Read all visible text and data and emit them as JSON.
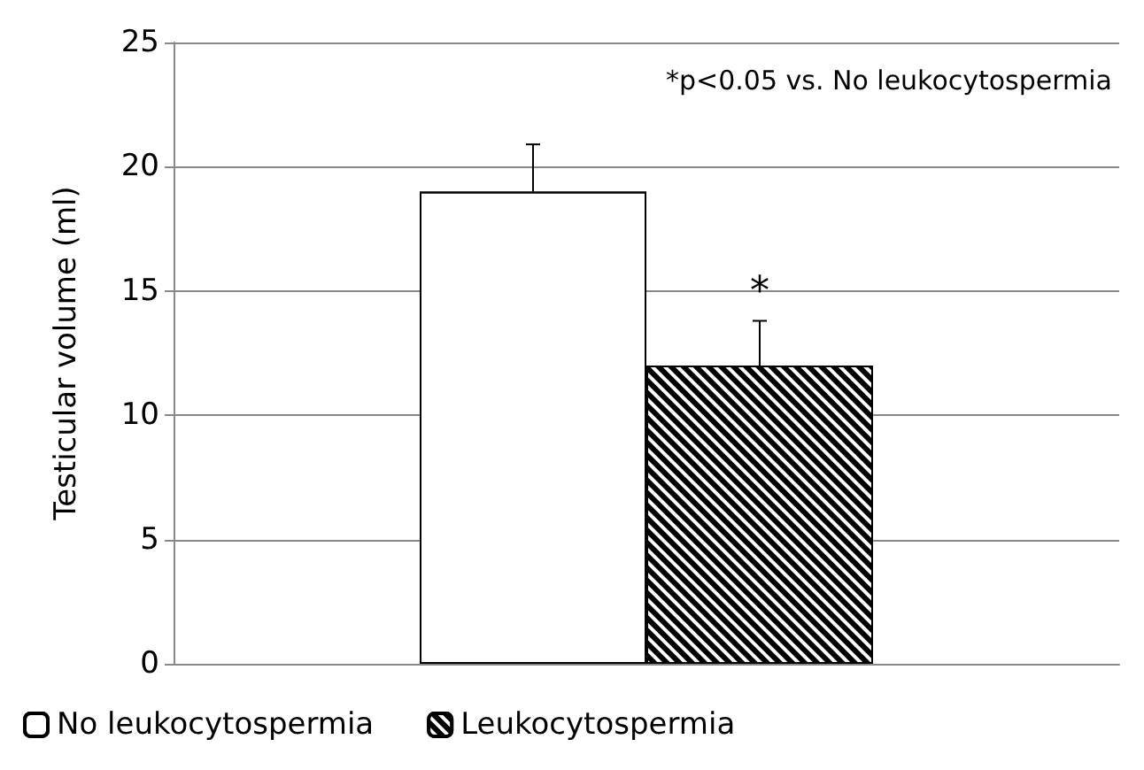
{
  "chart_data": {
    "type": "bar",
    "ylabel": "Testicular volume (ml)",
    "categories": [
      null
    ],
    "series": [
      {
        "name": "No leukocytospermia",
        "color": "#ffffff",
        "values": [
          19
        ],
        "errors": [
          [
            19,
            20.9
          ]
        ]
      },
      {
        "name": "Leukocytospermia",
        "color": "#000000",
        "values": [
          12
        ],
        "errors": [
          [
            12,
            13.8
          ]
        ]
      }
    ],
    "ylim": [
      0,
      25
    ],
    "yticks": [
      0,
      5,
      10,
      15,
      20,
      25
    ],
    "grid": "y",
    "legend": "bottom left",
    "annotations": [
      "*p<0.05 vs. No leukocytospermia",
      "*"
    ]
  }
}
